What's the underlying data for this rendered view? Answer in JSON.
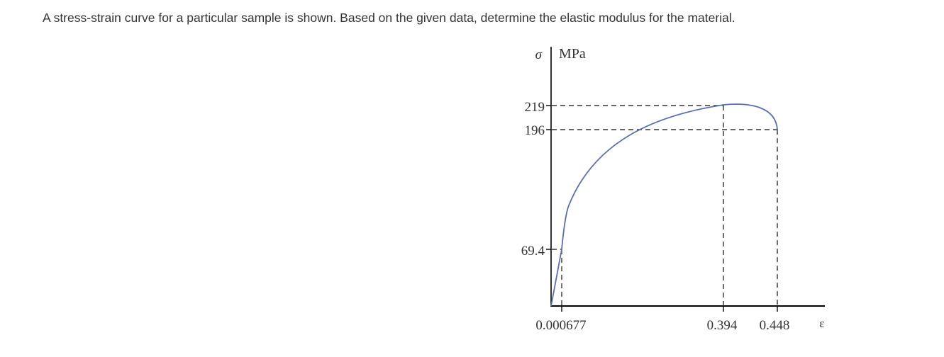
{
  "question": {
    "text": "A stress-strain curve for a particular sample is shown. Based on the given data, determine the elastic modulus for the material."
  },
  "chart_data": {
    "type": "line",
    "y_symbol": "σ",
    "y_unit": "MPa",
    "x_symbol": "ε",
    "y_ticks": [
      {
        "value": 219,
        "label": "219"
      },
      {
        "value": 196,
        "label": "196"
      },
      {
        "value": 69.4,
        "label": "69.4"
      }
    ],
    "x_ticks": [
      {
        "value": 0.000677,
        "label": "0.000677"
      },
      {
        "value": 0.394,
        "label": "0.394"
      },
      {
        "value": 0.448,
        "label": "0.448"
      }
    ],
    "key_points": [
      {
        "x": 0,
        "y": 0
      },
      {
        "x": 0.000677,
        "y": 69.4
      },
      {
        "x": 0.394,
        "y": 219
      },
      {
        "x": 0.448,
        "y": 196
      }
    ],
    "colors": {
      "curve": "#5a6fb3",
      "axes": "#000000",
      "dashed": "#333333"
    }
  }
}
